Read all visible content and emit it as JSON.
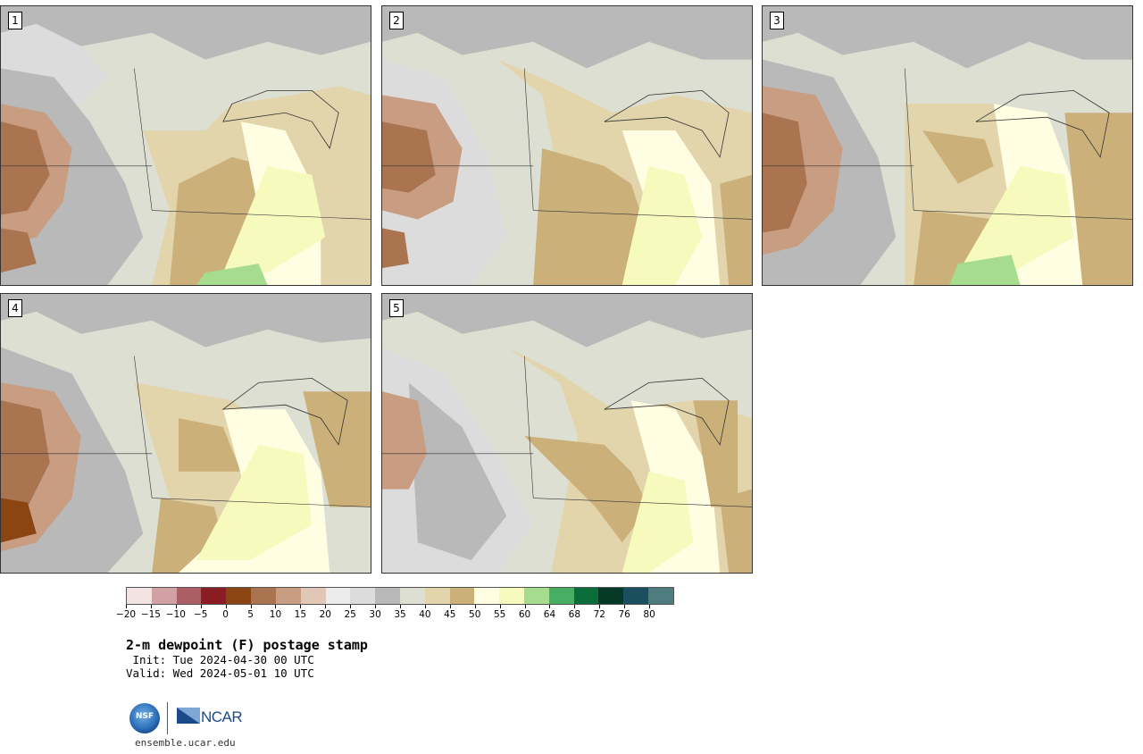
{
  "panels": [
    {
      "label": "1"
    },
    {
      "label": "2"
    },
    {
      "label": "3"
    },
    {
      "label": "4"
    },
    {
      "label": "5"
    }
  ],
  "colorbar": {
    "colors": [
      "#f3e3e3",
      "#d2a1a6",
      "#ab5e66",
      "#8a1d24",
      "#8b4513",
      "#ab7450",
      "#c89d82",
      "#e1c7b6",
      "#ececec",
      "#dcdcdc",
      "#b9b9b9",
      "#dedfd3",
      "#e2d4ab",
      "#cbb07a",
      "#fffee3",
      "#f6fbbd",
      "#a6dc8e",
      "#47af63",
      "#0a6d3a",
      "#053925",
      "#1b4f5f",
      "#4e7c7f"
    ],
    "tick_labels": [
      "−20",
      "−15",
      "−10",
      "−5",
      "0",
      "5",
      "10",
      "15",
      "20",
      "25",
      "30",
      "35",
      "40",
      "45",
      "50",
      "55",
      "60",
      "64",
      "68",
      "72",
      "76",
      "80"
    ]
  },
  "title": "2-m dewpoint (F) postage stamp",
  "init_line": " Init: Tue 2024-04-30 00 UTC",
  "valid_line": "Valid: Wed 2024-05-01 10 UTC",
  "logos": {
    "nsf": "NSF",
    "ncar": "NCAR"
  },
  "website": "ensemble.ucar.edu",
  "legend_colors": {
    "gray_light": "#dcdcdc",
    "gray_mid": "#b9b9b9",
    "beige": "#dedfd3",
    "tan": "#e2d4ab",
    "tan_dark": "#cbb07a",
    "cream": "#fffee3",
    "yellow": "#f6fbbd",
    "green": "#a6dc8e",
    "brown": "#ab7450",
    "brown_light": "#c89d82",
    "pink": "#e1c7b6"
  }
}
